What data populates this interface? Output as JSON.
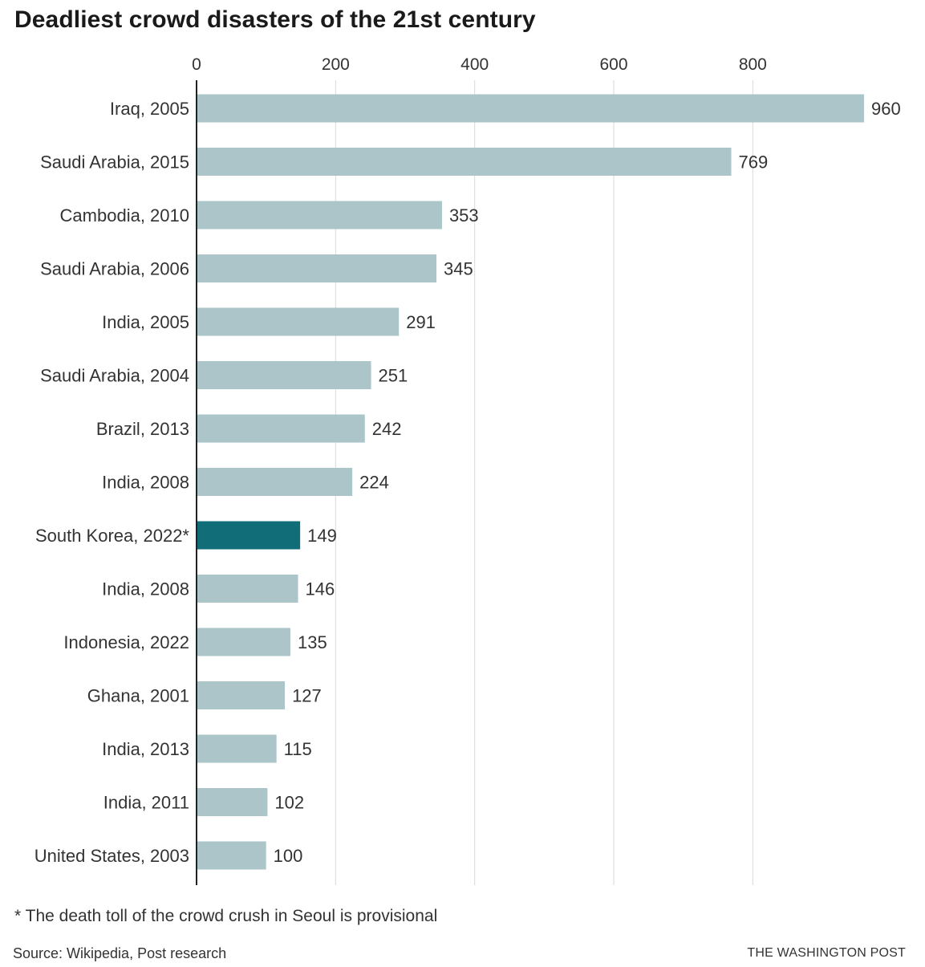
{
  "chart_data": {
    "type": "bar",
    "orientation": "horizontal",
    "title": "Deadliest crowd disasters of the 21st century",
    "categories": [
      "Iraq, 2005",
      "Saudi Arabia, 2015",
      "Cambodia, 2010",
      "Saudi Arabia, 2006",
      "India, 2005",
      "Saudi Arabia, 2004",
      "Brazil, 2013",
      "India, 2008",
      "South Korea, 2022*",
      "India, 2008",
      "Indonesia, 2022",
      "Ghana, 2001",
      "India, 2013",
      "India, 2011",
      "United States, 2003"
    ],
    "values": [
      960,
      769,
      353,
      345,
      291,
      251,
      242,
      224,
      149,
      146,
      135,
      127,
      115,
      102,
      100
    ],
    "highlight_index": 8,
    "xticks": [
      0,
      200,
      400,
      600,
      800
    ],
    "xlim": [
      0,
      960
    ],
    "xaxis_position": "top",
    "grid": true,
    "colors": {
      "bar": "#abc5c9",
      "highlight": "#116e78",
      "grid": "#d9d9d9",
      "axis": "#222222"
    }
  },
  "footnote": "* The death toll of the crowd crush in Seoul is provisional",
  "source": "Source: Wikipedia, Post research",
  "credit": "THE WASHINGTON POST"
}
